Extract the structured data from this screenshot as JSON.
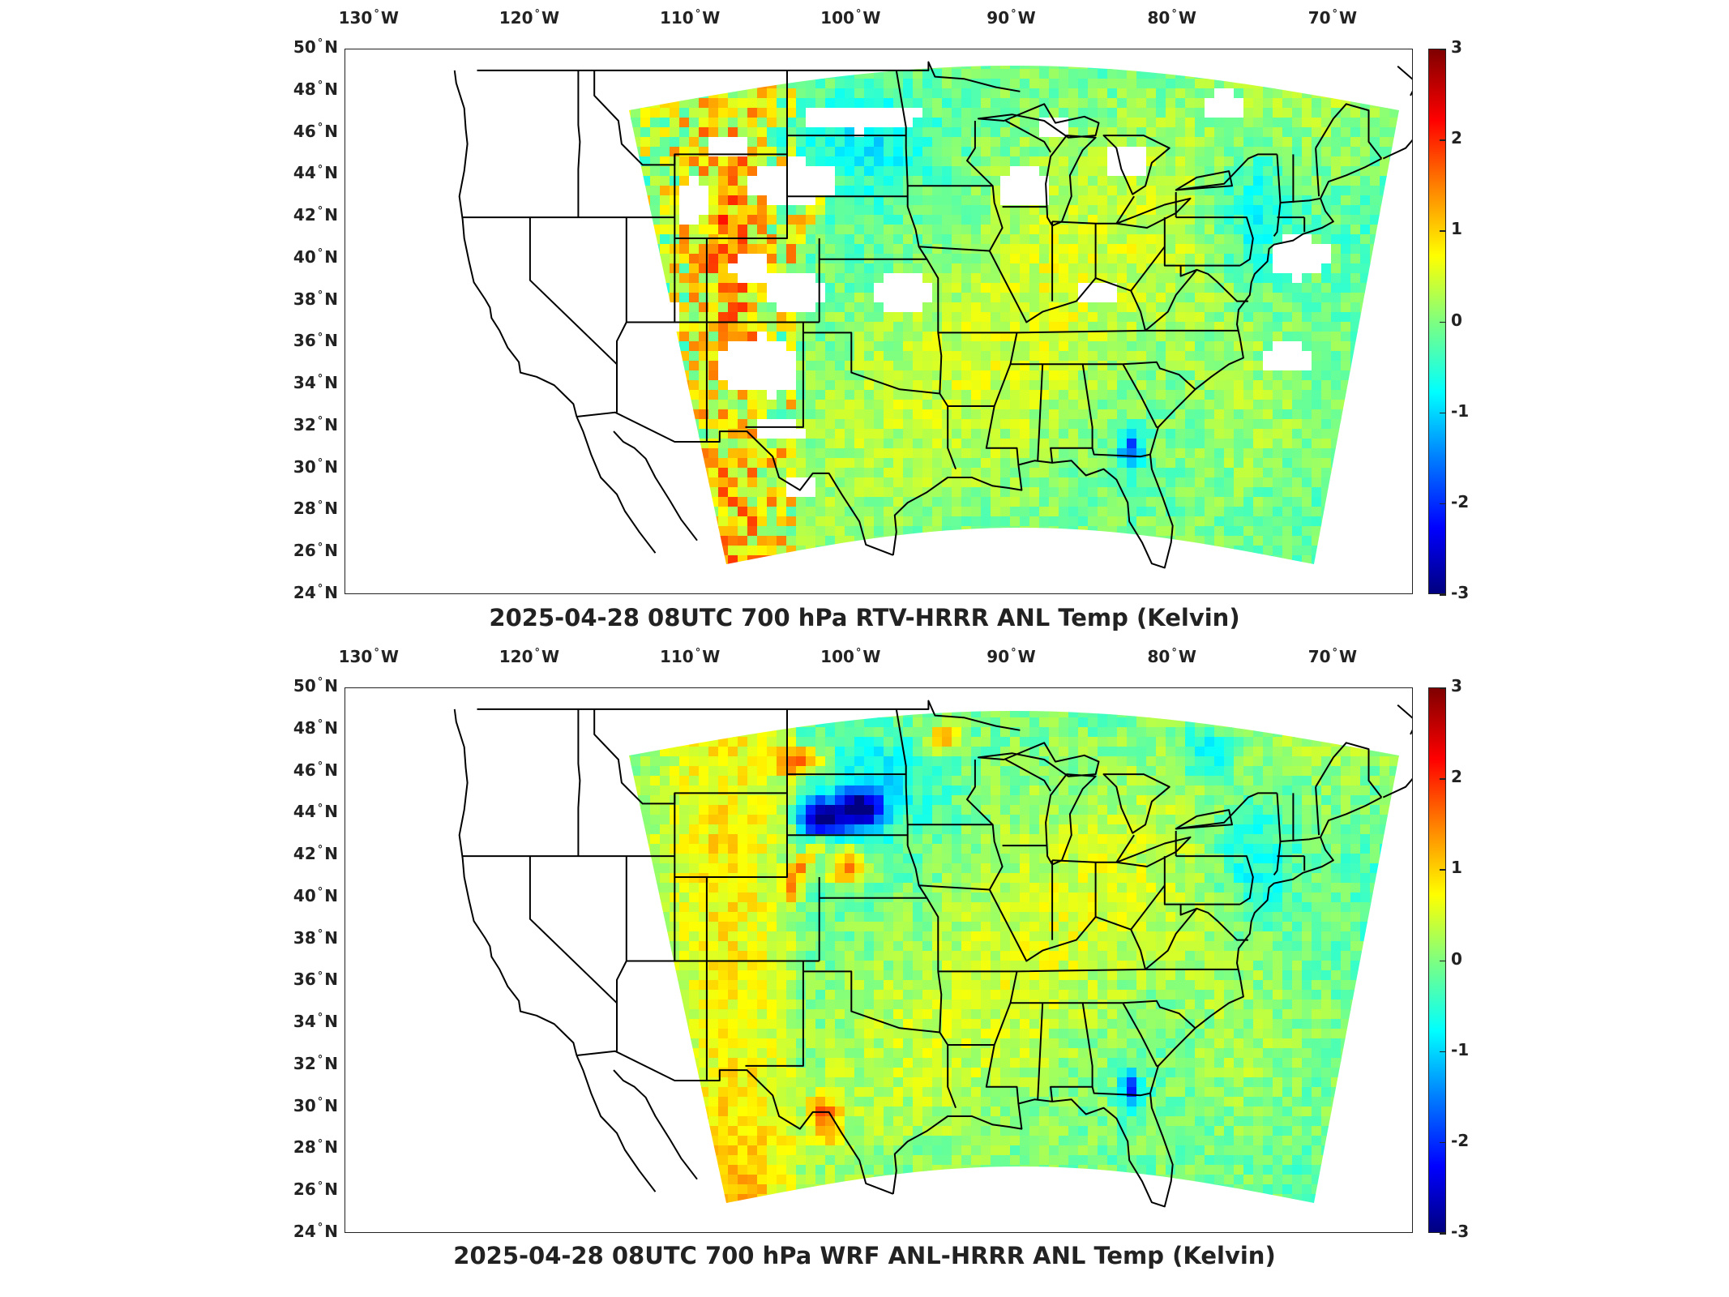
{
  "panels": [
    {
      "title": "2025-04-28 08UTC 700 hPa RTV-HRRR ANL Temp (Kelvin)",
      "variant": "rtv"
    },
    {
      "title": "2025-04-28 08UTC 700 hPa WRF ANL-HRRR ANL Temp (Kelvin)",
      "variant": "wrf"
    }
  ],
  "lon_ticks": [
    {
      "value": -130,
      "text": "130",
      "hemi": "W"
    },
    {
      "value": -120,
      "text": "120",
      "hemi": "W"
    },
    {
      "value": -110,
      "text": "110",
      "hemi": "W"
    },
    {
      "value": -100,
      "text": "100",
      "hemi": "W"
    },
    {
      "value": -90,
      "text": "90",
      "hemi": "W"
    },
    {
      "value": -80,
      "text": "80",
      "hemi": "W"
    },
    {
      "value": -70,
      "text": "70",
      "hemi": "W"
    }
  ],
  "lat_ticks": [
    {
      "value": 50,
      "text": "50",
      "hemi": "N"
    },
    {
      "value": 48,
      "text": "48",
      "hemi": "N"
    },
    {
      "value": 46,
      "text": "46",
      "hemi": "N"
    },
    {
      "value": 44,
      "text": "44",
      "hemi": "N"
    },
    {
      "value": 42,
      "text": "42",
      "hemi": "N"
    },
    {
      "value": 40,
      "text": "40",
      "hemi": "N"
    },
    {
      "value": 38,
      "text": "38",
      "hemi": "N"
    },
    {
      "value": 36,
      "text": "36",
      "hemi": "N"
    },
    {
      "value": 34,
      "text": "34",
      "hemi": "N"
    },
    {
      "value": 32,
      "text": "32",
      "hemi": "N"
    },
    {
      "value": 30,
      "text": "30",
      "hemi": "N"
    },
    {
      "value": 28,
      "text": "28",
      "hemi": "N"
    },
    {
      "value": 26,
      "text": "26",
      "hemi": "N"
    },
    {
      "value": 24,
      "text": "24",
      "hemi": "N"
    }
  ],
  "colorbar": {
    "ticks": [
      "3",
      "2",
      "1",
      "0",
      "-1",
      "-2",
      "-3"
    ],
    "range": [
      -3,
      3
    ],
    "colormap": "jet"
  },
  "colors": {
    "line": "#000000",
    "missing": "#ffffff"
  }
}
